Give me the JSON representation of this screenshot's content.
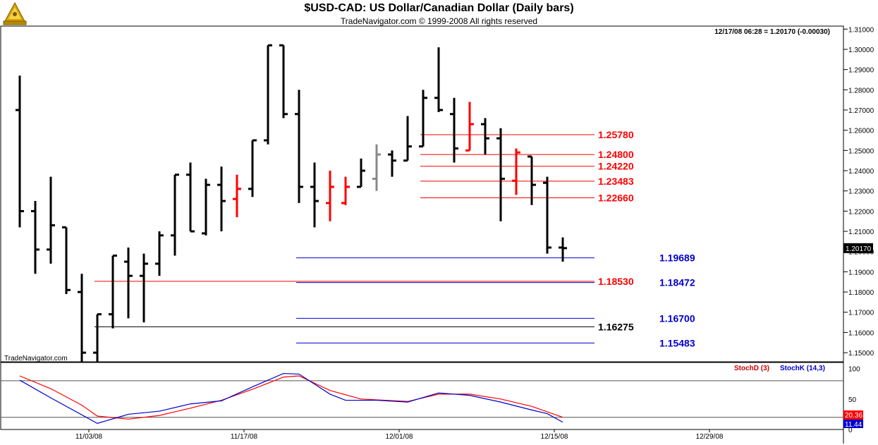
{
  "header": {
    "title": "$USD-CAD:  US Dollar/Canadian Dollar  (Daily bars)",
    "copyright": "TradeNavigator.com © 1999-2008 All rights reserved"
  },
  "chart_data": {
    "type": "ohlc",
    "quote": "12/17/08 06:28 = 1.20170 (-0.00030)",
    "last_price_label": "1.20170",
    "watermark": "TradeNavigator.com",
    "y_ticks": [
      "1.31000",
      "1.30000",
      "1.29000",
      "1.28000",
      "1.27000",
      "1.26000",
      "1.25000",
      "1.24000",
      "1.23000",
      "1.22000",
      "1.21000",
      "1.20000",
      "1.19000",
      "1.18000",
      "1.17000",
      "1.16000",
      "1.15000"
    ],
    "ylim": [
      1.1455,
      1.3115
    ],
    "x_tick_labels": [
      {
        "label": "11/03/08",
        "bar": 4
      },
      {
        "label": "11/17/08",
        "bar": 14
      },
      {
        "label": "12/01/08",
        "bar": 24
      },
      {
        "label": "12/15/08",
        "bar": 34
      },
      {
        "label": "12/29/08",
        "bar": 44
      }
    ],
    "bars": [
      {
        "o": 1.27,
        "h": 1.287,
        "l": 1.212,
        "c": 1.22,
        "color": "black"
      },
      {
        "o": 1.22,
        "h": 1.225,
        "l": 1.189,
        "c": 1.201,
        "color": "black"
      },
      {
        "o": 1.201,
        "h": 1.237,
        "l": 1.194,
        "c": 1.213,
        "color": "black"
      },
      {
        "o": 1.212,
        "h": 1.212,
        "l": 1.179,
        "c": 1.181,
        "color": "black"
      },
      {
        "o": 1.18,
        "h": 1.189,
        "l": 1.145,
        "c": 1.15,
        "color": "black"
      },
      {
        "o": 1.15,
        "h": 1.169,
        "l": 1.145,
        "c": 1.169,
        "color": "black"
      },
      {
        "o": 1.169,
        "h": 1.198,
        "l": 1.162,
        "c": 1.198,
        "color": "black"
      },
      {
        "o": 1.195,
        "h": 1.202,
        "l": 1.167,
        "c": 1.188,
        "color": "black"
      },
      {
        "o": 1.188,
        "h": 1.199,
        "l": 1.165,
        "c": 1.194,
        "color": "black"
      },
      {
        "o": 1.194,
        "h": 1.21,
        "l": 1.188,
        "c": 1.208,
        "color": "black"
      },
      {
        "o": 1.208,
        "h": 1.238,
        "l": 1.198,
        "c": 1.238,
        "color": "black"
      },
      {
        "o": 1.238,
        "h": 1.244,
        "l": 1.21,
        "c": 1.21,
        "color": "black"
      },
      {
        "o": 1.209,
        "h": 1.236,
        "l": 1.208,
        "c": 1.233,
        "color": "black"
      },
      {
        "o": 1.233,
        "h": 1.242,
        "l": 1.21,
        "c": 1.225,
        "color": "black"
      },
      {
        "o": 1.226,
        "h": 1.238,
        "l": 1.217,
        "c": 1.231,
        "color": "red"
      },
      {
        "o": 1.231,
        "h": 1.255,
        "l": 1.227,
        "c": 1.255,
        "color": "black"
      },
      {
        "o": 1.255,
        "h": 1.302,
        "l": 1.253,
        "c": 1.302,
        "color": "black"
      },
      {
        "o": 1.302,
        "h": 1.302,
        "l": 1.266,
        "c": 1.268,
        "color": "black"
      },
      {
        "o": 1.268,
        "h": 1.28,
        "l": 1.224,
        "c": 1.232,
        "color": "black"
      },
      {
        "o": 1.232,
        "h": 1.244,
        "l": 1.212,
        "c": 1.225,
        "color": "black"
      },
      {
        "o": 1.224,
        "h": 1.24,
        "l": 1.215,
        "c": 1.232,
        "color": "red"
      },
      {
        "o": 1.224,
        "h": 1.237,
        "l": 1.223,
        "c": 1.232,
        "color": "red"
      },
      {
        "o": 1.232,
        "h": 1.246,
        "l": 1.232,
        "c": 1.24,
        "color": "black"
      },
      {
        "o": 1.236,
        "h": 1.253,
        "l": 1.23,
        "c": 1.248,
        "color": "gray"
      },
      {
        "o": 1.248,
        "h": 1.25,
        "l": 1.237,
        "c": 1.245,
        "color": "black"
      },
      {
        "o": 1.245,
        "h": 1.267,
        "l": 1.245,
        "c": 1.252,
        "color": "black"
      },
      {
        "o": 1.252,
        "h": 1.28,
        "l": 1.252,
        "c": 1.276,
        "color": "black"
      },
      {
        "o": 1.276,
        "h": 1.301,
        "l": 1.269,
        "c": 1.27,
        "color": "black"
      },
      {
        "o": 1.268,
        "h": 1.276,
        "l": 1.244,
        "c": 1.251,
        "color": "black"
      },
      {
        "o": 1.25,
        "h": 1.274,
        "l": 1.25,
        "c": 1.263,
        "color": "red"
      },
      {
        "o": 1.263,
        "h": 1.266,
        "l": 1.248,
        "c": 1.256,
        "color": "black"
      },
      {
        "o": 1.256,
        "h": 1.261,
        "l": 1.215,
        "c": 1.236,
        "color": "black"
      },
      {
        "o": 1.235,
        "h": 1.251,
        "l": 1.228,
        "c": 1.249,
        "color": "red"
      },
      {
        "o": 1.247,
        "h": 1.247,
        "l": 1.223,
        "c": 1.233,
        "color": "black"
      },
      {
        "o": 1.234,
        "h": 1.237,
        "l": 1.199,
        "c": 1.202,
        "color": "black"
      },
      {
        "o": 1.202,
        "h": 1.207,
        "l": 1.195,
        "c": 1.2017,
        "color": "black"
      }
    ],
    "levels": [
      {
        "label": "1.25780",
        "value": 1.2578,
        "color": "#ff0000",
        "from_bar": 26
      },
      {
        "label": "1.24800",
        "value": 1.248,
        "color": "#ff0000",
        "from_bar": 26
      },
      {
        "label": "1.24220",
        "value": 1.2422,
        "color": "#ff0000",
        "from_bar": 26
      },
      {
        "label": "1.23483",
        "value": 1.2348,
        "color": "#ff0000",
        "from_bar": 26
      },
      {
        "label": "1.22660",
        "value": 1.2266,
        "color": "#ff0000",
        "from_bar": 26
      },
      {
        "label": "1.19689",
        "value": 1.1969,
        "color": "#0000cc",
        "from_bar": 18
      },
      {
        "label": "1.18530",
        "value": 1.1853,
        "color": "#ff0000",
        "from_bar": 5
      },
      {
        "label": "1.18472",
        "value": 1.1847,
        "color": "#0000cc",
        "from_bar": 18
      },
      {
        "label": "1.16700",
        "value": 1.167,
        "color": "#0000cc",
        "from_bar": 18
      },
      {
        "label": "1.16275",
        "value": 1.1628,
        "color": "#000000",
        "from_bar": 5
      },
      {
        "label": "1.15483",
        "value": 1.1548,
        "color": "#0000cc",
        "from_bar": 18
      }
    ],
    "oscillator": {
      "stochd_label": "StochD (3)",
      "stochk_label": "StochK (14,3)",
      "y_ticks": [
        "100",
        "50",
        "0"
      ],
      "ylim": [
        0,
        110
      ],
      "stochd_value_label": "20.36",
      "stochk_value_label": "11.44",
      "stochd": [
        {
          "bar": 0,
          "v": 88
        },
        {
          "bar": 2,
          "v": 67
        },
        {
          "bar": 4,
          "v": 40
        },
        {
          "bar": 5,
          "v": 22
        },
        {
          "bar": 7,
          "v": 17
        },
        {
          "bar": 9,
          "v": 23
        },
        {
          "bar": 11,
          "v": 35
        },
        {
          "bar": 13,
          "v": 48
        },
        {
          "bar": 15,
          "v": 66
        },
        {
          "bar": 17,
          "v": 86
        },
        {
          "bar": 18,
          "v": 88
        },
        {
          "bar": 20,
          "v": 64
        },
        {
          "bar": 22,
          "v": 50
        },
        {
          "bar": 25,
          "v": 46
        },
        {
          "bar": 27,
          "v": 58
        },
        {
          "bar": 29,
          "v": 58
        },
        {
          "bar": 31,
          "v": 50
        },
        {
          "bar": 33,
          "v": 38
        },
        {
          "bar": 35,
          "v": 20
        }
      ],
      "stochk": [
        {
          "bar": 0,
          "v": 81
        },
        {
          "bar": 2,
          "v": 52
        },
        {
          "bar": 5,
          "v": 10
        },
        {
          "bar": 7,
          "v": 25
        },
        {
          "bar": 9,
          "v": 30
        },
        {
          "bar": 11,
          "v": 42
        },
        {
          "bar": 13,
          "v": 47
        },
        {
          "bar": 15,
          "v": 70
        },
        {
          "bar": 17,
          "v": 92
        },
        {
          "bar": 18,
          "v": 91
        },
        {
          "bar": 20,
          "v": 58
        },
        {
          "bar": 21,
          "v": 48
        },
        {
          "bar": 23,
          "v": 48
        },
        {
          "bar": 25,
          "v": 45
        },
        {
          "bar": 27,
          "v": 60
        },
        {
          "bar": 29,
          "v": 56
        },
        {
          "bar": 31,
          "v": 45
        },
        {
          "bar": 33,
          "v": 32
        },
        {
          "bar": 34,
          "v": 26
        },
        {
          "bar": 35,
          "v": 12
        }
      ]
    }
  }
}
